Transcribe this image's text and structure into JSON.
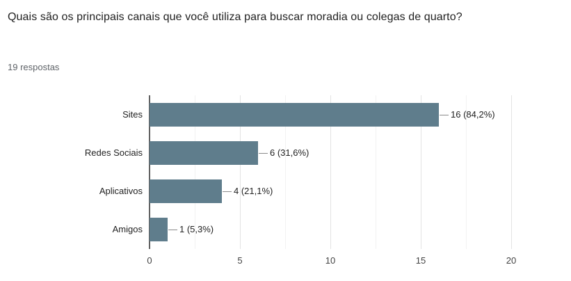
{
  "question": {
    "title": "Quais são os principais canais que você utiliza para buscar moradia ou colegas de quarto?",
    "responses": "19 respostas"
  },
  "chart_data": {
    "type": "bar",
    "orientation": "horizontal",
    "title": "Quais são os principais canais que você utiliza para buscar moradia ou colegas de quarto?",
    "subtitle": "19 respostas",
    "categories": [
      "Sites",
      "Redes Sociais",
      "Aplicativos",
      "Amigos"
    ],
    "values": [
      16,
      6,
      4,
      1
    ],
    "value_labels": [
      "16 (84,2%)",
      "6 (31,6%)",
      "4 (21,1%)",
      "1 (5,3%)"
    ],
    "xlim": [
      0,
      20
    ],
    "xticks": [
      "0",
      "5",
      "10",
      "15",
      "20"
    ],
    "minor_grid_step": 2.5,
    "grid": true,
    "legend": "none",
    "colors": {
      "bar": "#5f7d8c",
      "baseline": "#616161",
      "major_gridline": "#e3e3e3",
      "minor_gridline": "#f2f2f2",
      "callout_line": "#8a8a8a",
      "label_text": "#212121",
      "tick_text": "#424242",
      "subtitle_text": "#5f6368"
    }
  }
}
